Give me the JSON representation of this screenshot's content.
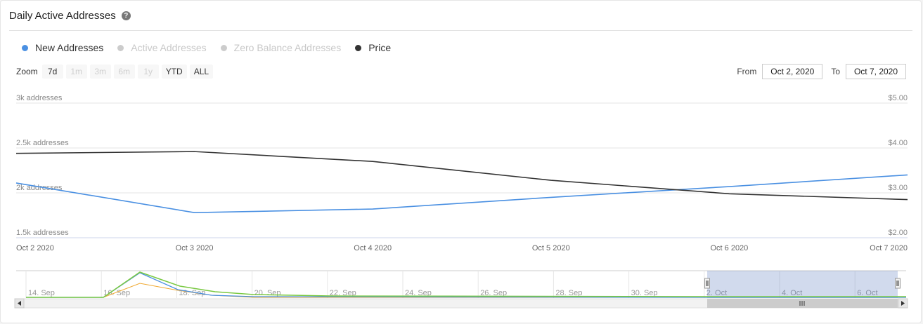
{
  "title": "Daily Active Addresses",
  "help_icon": "?",
  "legend": [
    {
      "label": "New Addresses",
      "color": "#4a90e2",
      "active": true
    },
    {
      "label": "Active Addresses",
      "color": "#cccccc",
      "active": false
    },
    {
      "label": "Zero Balance Addresses",
      "color": "#cccccc",
      "active": false
    },
    {
      "label": "Price",
      "color": "#333333",
      "active": true
    }
  ],
  "zoom": {
    "label": "Zoom",
    "buttons": [
      {
        "label": "7d",
        "enabled": true
      },
      {
        "label": "1m",
        "enabled": false
      },
      {
        "label": "3m",
        "enabled": false
      },
      {
        "label": "6m",
        "enabled": false
      },
      {
        "label": "1y",
        "enabled": false
      },
      {
        "label": "YTD",
        "enabled": true
      },
      {
        "label": "ALL",
        "enabled": true
      }
    ]
  },
  "range": {
    "from_label": "From",
    "from_value": "Oct 2, 2020",
    "to_label": "To",
    "to_value": "Oct 7, 2020"
  },
  "chart_data": {
    "type": "line",
    "title": "Daily Active Addresses",
    "x": [
      "Oct 2 2020",
      "Oct 3 2020",
      "Oct 4 2020",
      "Oct 5 2020",
      "Oct 6 2020",
      "Oct 7 2020"
    ],
    "y_left": {
      "ticks": [
        "3k addresses",
        "2.5k addresses",
        "2k addresses",
        "1.5k addresses"
      ],
      "tick_values": [
        3000,
        2500,
        2000,
        1500
      ],
      "range": [
        1500,
        3000
      ]
    },
    "y_right": {
      "ticks": [
        "$5.00",
        "$4.00",
        "$3.00",
        "$2.00"
      ],
      "tick_values": [
        5,
        4,
        3,
        2
      ],
      "range": [
        2,
        5
      ]
    },
    "series": [
      {
        "name": "New Addresses",
        "axis": "left",
        "color": "#4a90e2",
        "values": [
          2110,
          1780,
          1820,
          1950,
          2070,
          2200
        ]
      },
      {
        "name": "Price",
        "axis": "right",
        "color": "#333333",
        "values": [
          3.88,
          3.92,
          3.7,
          3.28,
          2.98,
          2.85
        ]
      }
    ],
    "grid": true,
    "navigator": {
      "labels": [
        "14. Sep",
        "16. Sep",
        "18. Sep",
        "20. Sep",
        "22. Sep",
        "24. Sep",
        "26. Sep",
        "28. Sep",
        "30. Sep",
        "2. Oct",
        "4. Oct",
        "6. Oct"
      ],
      "selected_range": [
        "Oct 2 2020",
        "Oct 7 2020"
      ],
      "series_colors": [
        "#4a90e2",
        "#7ac943",
        "#f0a830"
      ]
    }
  }
}
